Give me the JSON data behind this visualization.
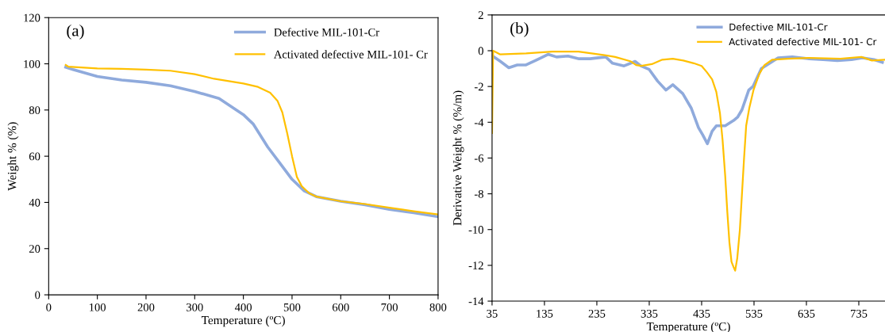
{
  "chart_data": [
    {
      "type": "line",
      "title": "(a)",
      "xlabel": "Temperature (ºC)",
      "ylabel": "Weight % (%)",
      "xlim": [
        0,
        800
      ],
      "xticks": [
        0,
        100,
        200,
        300,
        400,
        500,
        600,
        700,
        800
      ],
      "ylim": [
        0,
        120
      ],
      "yticks": [
        0,
        20,
        40,
        60,
        80,
        100,
        120
      ],
      "legend": "top right",
      "grid": false,
      "marker": "none",
      "line_style": "solid",
      "series": [
        {
          "name": "Defective MIL-101-Cr",
          "color": "#8faadc",
          "x": [
            35,
            50,
            100,
            150,
            200,
            250,
            300,
            350,
            400,
            420,
            450,
            475,
            500,
            525,
            550,
            600,
            650,
            700,
            750,
            800
          ],
          "values": [
            98.5,
            97.5,
            94.5,
            93,
            92,
            90.5,
            88,
            85,
            78,
            74,
            64,
            57,
            50,
            45,
            42.5,
            40.5,
            39,
            37,
            35.5,
            33.8
          ]
        },
        {
          "name": "Activated defective MIL-101- Cr",
          "color": "#ffc000",
          "x": [
            35,
            40,
            100,
            150,
            200,
            250,
            300,
            340,
            400,
            430,
            455,
            470,
            480,
            490,
            500,
            510,
            520,
            535,
            550,
            600,
            650,
            700,
            750,
            800
          ],
          "values": [
            99.5,
            98.8,
            98,
            97.8,
            97.5,
            97,
            95.5,
            93.5,
            91.5,
            90,
            87.5,
            84,
            79,
            70,
            60,
            51,
            47,
            44,
            42.5,
            40.5,
            39.3,
            37.7,
            36.2,
            34.8
          ]
        }
      ]
    },
    {
      "type": "line",
      "title": "(b)",
      "xlabel": "Temperature (ºC)",
      "ylabel": "Derivative Weight % (%/m)",
      "xlim": [
        35,
        785
      ],
      "xticks": [
        35,
        135,
        235,
        335,
        435,
        535,
        635,
        735
      ],
      "ylim": [
        -14,
        2
      ],
      "yticks": [
        -14,
        -12,
        -10,
        -8,
        -6,
        -4,
        -2,
        0,
        2
      ],
      "legend": "top right",
      "grid": false,
      "marker": "none",
      "line_style": "solid",
      "series": [
        {
          "name": "Defective MIL-101-Cr",
          "color": "#8faadc",
          "x": [
            36,
            51,
            67,
            83,
            99,
            121,
            142,
            158,
            180,
            201,
            222,
            252,
            265,
            287,
            308,
            319,
            335,
            351,
            367,
            380,
            399,
            415,
            429,
            437,
            446,
            455,
            463,
            480,
            496,
            504,
            512,
            525,
            533,
            549,
            565,
            581,
            608,
            640,
            667,
            694,
            721,
            742,
            764,
            780
          ],
          "values": [
            -0.3,
            -0.6,
            -0.95,
            -0.8,
            -0.8,
            -0.5,
            -0.2,
            -0.35,
            -0.3,
            -0.45,
            -0.45,
            -0.35,
            -0.7,
            -0.85,
            -0.6,
            -0.85,
            -1.05,
            -1.7,
            -2.2,
            -1.9,
            -2.4,
            -3.2,
            -4.3,
            -4.7,
            -5.2,
            -4.5,
            -4.2,
            -4.2,
            -3.9,
            -3.7,
            -3.3,
            -2.2,
            -2.0,
            -1.0,
            -0.7,
            -0.4,
            -0.35,
            -0.45,
            -0.5,
            -0.55,
            -0.5,
            -0.4,
            -0.5,
            -0.65
          ]
        },
        {
          "name": "Activated defective MIL-101- Cr",
          "color": "#ffc000",
          "x": [
            35,
            37,
            50,
            100,
            150,
            200,
            250,
            270,
            300,
            310,
            320,
            340,
            360,
            380,
            400,
            420,
            435,
            445,
            455,
            463,
            470,
            475,
            480,
            484,
            488,
            492,
            496,
            499,
            503,
            508,
            512,
            516,
            520,
            526,
            534,
            545,
            555,
            570,
            600,
            640,
            700,
            740,
            760,
            785
          ],
          "values": [
            -4.6,
            0.0,
            -0.2,
            -0.15,
            -0.05,
            -0.05,
            -0.25,
            -0.35,
            -0.6,
            -0.8,
            -0.85,
            -0.75,
            -0.5,
            -0.45,
            -0.55,
            -0.7,
            -0.85,
            -1.2,
            -1.6,
            -2.3,
            -3.5,
            -5,
            -7,
            -9,
            -10.7,
            -11.8,
            -12.1,
            -12.3,
            -11.6,
            -10,
            -8,
            -6,
            -4.2,
            -3.2,
            -2.2,
            -1.3,
            -0.8,
            -0.5,
            -0.45,
            -0.4,
            -0.45,
            -0.35,
            -0.55,
            -0.5
          ]
        }
      ]
    }
  ]
}
